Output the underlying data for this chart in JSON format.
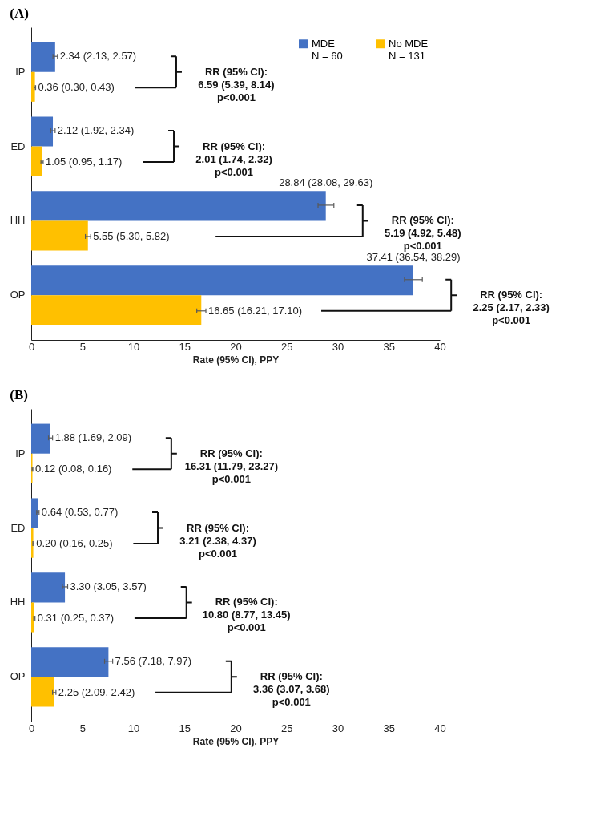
{
  "chart_data": [
    {
      "type": "bar",
      "title": "(A)",
      "orientation": "horizontal",
      "categories": [
        "IP",
        "ED",
        "HH",
        "OP"
      ],
      "xlabel": "Rate (95% CI), PPY",
      "xlim": [
        0,
        40
      ],
      "xticks": [
        0,
        5,
        10,
        15,
        20,
        25,
        30,
        35,
        40
      ],
      "legend": "top right",
      "grid": false,
      "series": [
        {
          "name": "MDE\nN = 60",
          "color": "#4472c4",
          "values": [
            2.34,
            2.12,
            28.84,
            37.41
          ],
          "errors": [
            [
              2.13,
              2.57
            ],
            [
              1.92,
              2.34
            ],
            [
              28.08,
              29.63
            ],
            [
              36.54,
              38.29
            ]
          ],
          "value_labels": [
            "2.34 (2.13, 2.57)",
            "2.12 (1.92, 2.34)",
            "28.84 (28.08, 29.63)",
            "37.41 (36.54, 38.29)"
          ]
        },
        {
          "name": "No MDE\nN = 131",
          "color": "#ffc000",
          "values": [
            0.36,
            1.05,
            5.55,
            16.65
          ],
          "errors": [
            [
              0.3,
              0.43
            ],
            [
              0.95,
              1.17
            ],
            [
              5.3,
              5.82
            ],
            [
              16.21,
              17.1
            ]
          ],
          "value_labels": [
            "0.36 (0.30, 0.43)",
            "1.05 (0.95, 1.17)",
            "5.55 (5.30, 5.82)",
            "16.65 (16.21, 17.10)"
          ]
        }
      ],
      "annotations": [
        "RR (95% CI):\n6.59 (5.39, 8.14)\np<0.001",
        "RR (95% CI):\n2.01 (1.74, 2.32)\np<0.001",
        "RR (95% CI):\n5.19 (4.92, 5.48)\np<0.001",
        "RR (95% CI):\n2.25 (2.17, 2.33)\np<0.001"
      ]
    },
    {
      "type": "bar",
      "title": "(B)",
      "orientation": "horizontal",
      "categories": [
        "IP",
        "ED",
        "HH",
        "OP"
      ],
      "xlabel": "Rate (95% CI), PPY",
      "xlim": [
        0,
        40
      ],
      "xticks": [
        0,
        5,
        10,
        15,
        20,
        25,
        30,
        35,
        40
      ],
      "legend": "top right",
      "grid": false,
      "series": [
        {
          "name": "MDE\nN = 60",
          "color": "#4472c4",
          "values": [
            1.88,
            0.64,
            3.3,
            7.56
          ],
          "errors": [
            [
              1.69,
              2.09
            ],
            [
              0.53,
              0.77
            ],
            [
              3.05,
              3.57
            ],
            [
              7.18,
              7.97
            ]
          ],
          "value_labels": [
            "1.88 (1.69, 2.09)",
            "0.64 (0.53, 0.77)",
            "3.30 (3.05, 3.57)",
            "7.56 (7.18, 7.97)"
          ]
        },
        {
          "name": "No MDE\nN = 131",
          "color": "#ffc000",
          "values": [
            0.12,
            0.2,
            0.31,
            2.25
          ],
          "errors": [
            [
              0.08,
              0.16
            ],
            [
              0.16,
              0.25
            ],
            [
              0.25,
              0.37
            ],
            [
              2.09,
              2.42
            ]
          ],
          "value_labels": [
            "0.12 (0.08, 0.16)",
            "0.20 (0.16, 0.25)",
            "0.31 (0.25, 0.37)",
            "2.25 (2.09, 2.42)"
          ]
        }
      ],
      "annotations": [
        "RR (95% CI):\n16.31 (11.79, 23.27)\np<0.001",
        "RR (95% CI):\n3.21 (2.38, 4.37)\np<0.001",
        "RR (95% CI):\n10.80 (8.77, 13.45)\np<0.001",
        "RR (95% CI):\n3.36 (3.07, 3.68)\np<0.001"
      ]
    }
  ]
}
